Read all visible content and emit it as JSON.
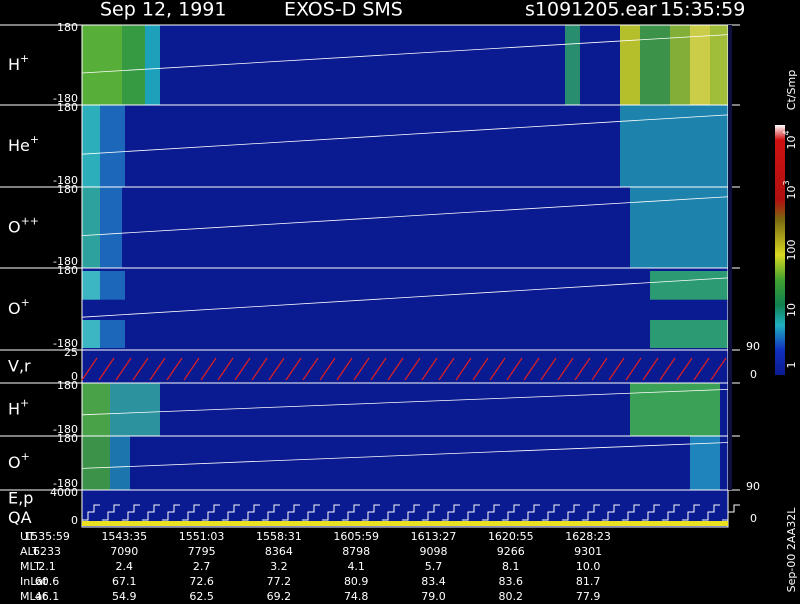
{
  "header": {
    "date": "Sep 12, 1991",
    "instrument": "EXOS-D SMS",
    "file": "s1091205.ear",
    "time": "15:35:59"
  },
  "panels": [
    {
      "label": {
        "base": "H",
        "sup": "+"
      },
      "ticks": [
        "180",
        "-180"
      ]
    },
    {
      "label": {
        "base": "He",
        "sup": "+"
      },
      "ticks": [
        "180",
        "-180"
      ]
    },
    {
      "label": {
        "base": "O",
        "sup": "++"
      },
      "ticks": [
        "180",
        "-180"
      ]
    },
    {
      "label": {
        "base": "O",
        "sup": "+"
      },
      "ticks": [
        "180",
        "-180"
      ]
    },
    {
      "label": {
        "base": "V,r",
        "sup": ""
      },
      "ticks": [
        "25",
        "0"
      ],
      "right_ticks": [
        "90",
        "0"
      ]
    },
    {
      "label": {
        "base": "H",
        "sup": "+"
      },
      "ticks": [
        "180",
        "-180"
      ]
    },
    {
      "label": {
        "base": "O",
        "sup": "+"
      },
      "ticks": [
        "180",
        "-180"
      ]
    },
    {
      "label": {
        "base": "E,p",
        "sup": ""
      },
      "label2": "QA",
      "ticks": [
        "4000",
        "0"
      ],
      "right_ticks": [
        "90",
        "0"
      ]
    }
  ],
  "colorbar": {
    "label": "Ct/Smp",
    "ticks": [
      {
        "base": "10",
        "sup": "4"
      },
      {
        "base": "10",
        "sup": "3"
      },
      {
        "base": "100",
        "sup": ""
      },
      {
        "base": "10",
        "sup": ""
      },
      {
        "base": "1",
        "sup": ""
      }
    ]
  },
  "side_note": "Sep-00 2AA32L",
  "footer": {
    "rows": [
      {
        "label": "UT",
        "values": [
          "1535:59",
          "1543:35",
          "1551:03",
          "1558:31",
          "1605:59",
          "1613:27",
          "1620:55",
          "1628:23"
        ]
      },
      {
        "label": "ALT",
        "values": [
          "6233",
          "7090",
          "7795",
          "8364",
          "8798",
          "9098",
          "9266",
          "9301"
        ]
      },
      {
        "label": "MLT",
        "values": [
          "2.1",
          "2.4",
          "2.7",
          "3.2",
          "4.1",
          "5.7",
          "8.1",
          "10.0"
        ]
      },
      {
        "label": "InLat",
        "values": [
          "60.6",
          "67.1",
          "72.6",
          "77.2",
          "80.9",
          "83.4",
          "83.6",
          "81.7"
        ]
      },
      {
        "label": "MLat",
        "values": [
          "46.1",
          "54.9",
          "62.5",
          "69.2",
          "74.8",
          "79.0",
          "80.2",
          "77.9"
        ]
      }
    ]
  }
}
